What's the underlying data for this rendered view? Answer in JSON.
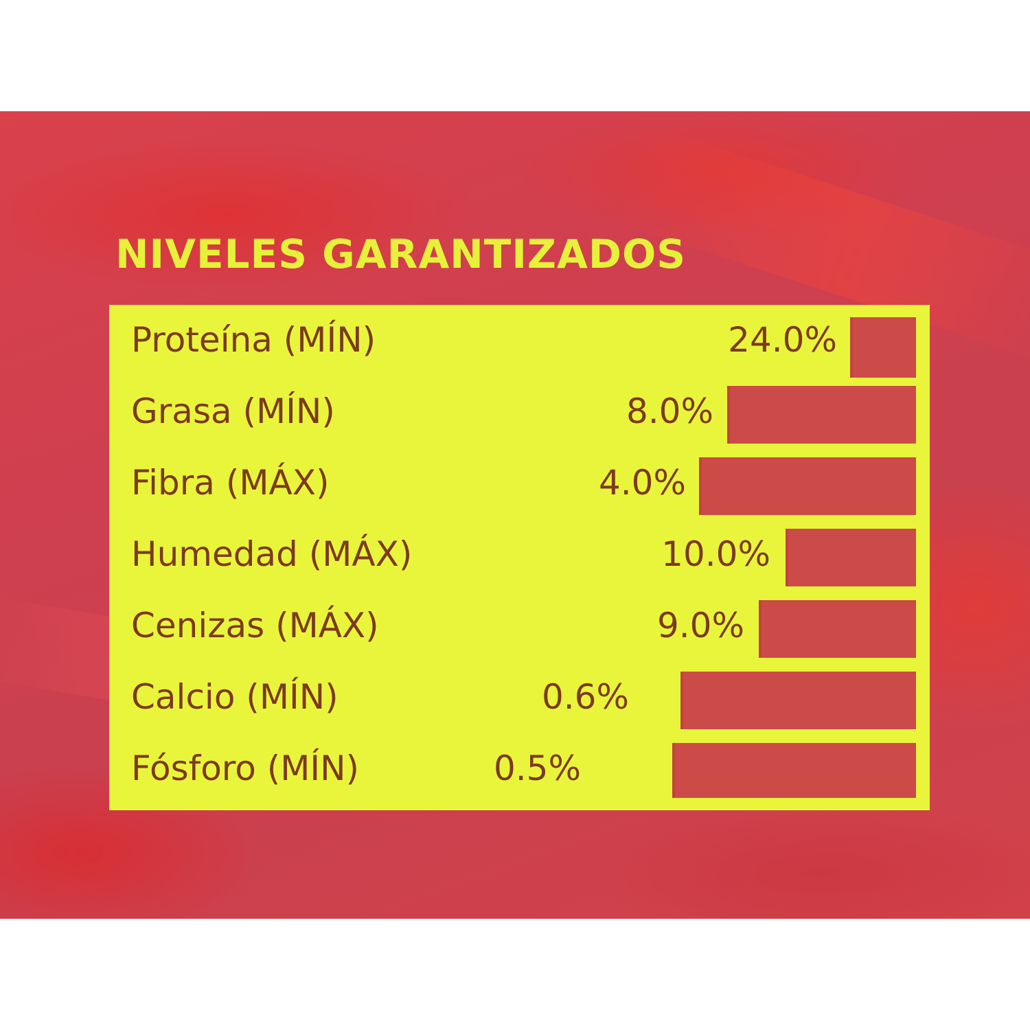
{
  "title": "NIVELES GARANTIZADOS",
  "rows": [
    {
      "label": "Proteína (MÍN)",
      "value": "24.0%"
    },
    {
      "label": "Grasa (MÍN)",
      "value": "8.0%"
    },
    {
      "label": "Fibra (MÁX)",
      "value": "4.0%"
    },
    {
      "label": "Humedad (MÁX)",
      "value": "10.0%"
    },
    {
      "label": "Cenizas (MÁX)",
      "value": "9.0%"
    },
    {
      "label": "Calcio (MÍN)",
      "value": "0.6%"
    },
    {
      "label": "Fósforo (MÍN)",
      "value": "0.5%"
    }
  ],
  "colors": {
    "background": "#cf3f4f",
    "panel": "#e9f53b",
    "title_text": "#e6f23a",
    "row_text": "#7c3a1e",
    "bar": "#cc4a48"
  }
}
